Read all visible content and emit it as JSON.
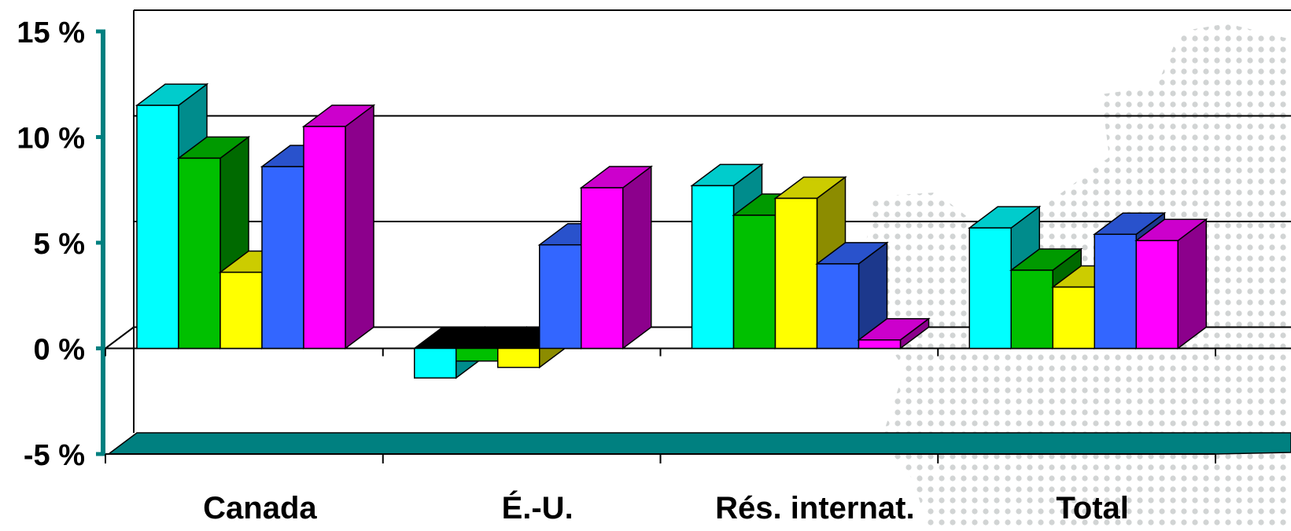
{
  "chart_data": {
    "type": "bar",
    "categories": [
      "Canada",
      "É.-U.",
      "Rés. internat.",
      "Total"
    ],
    "series": [
      {
        "color": "#00FFFF",
        "values": [
          11.5,
          -1.4,
          7.7,
          5.7
        ]
      },
      {
        "color": "#00C000",
        "values": [
          9.0,
          -0.6,
          6.3,
          3.7
        ]
      },
      {
        "color": "#FFFF00",
        "values": [
          3.6,
          -0.9,
          7.1,
          2.9
        ]
      },
      {
        "color": "#3366FF",
        "values": [
          8.6,
          4.9,
          4.0,
          5.4
        ]
      },
      {
        "color": "#FF00FF",
        "values": [
          10.5,
          7.6,
          0.4,
          5.1
        ]
      }
    ],
    "title": "",
    "xlabel": "",
    "ylabel": "",
    "ylim": [
      -5,
      15
    ],
    "yticks": [
      "-5 %",
      "0 %",
      "5 %",
      "10 %",
      "15 %"
    ],
    "grid": true,
    "style": "3d-clustered-column",
    "axis_color": "#008080",
    "floor_color": "#008080",
    "zero_line_color": "#000000"
  }
}
